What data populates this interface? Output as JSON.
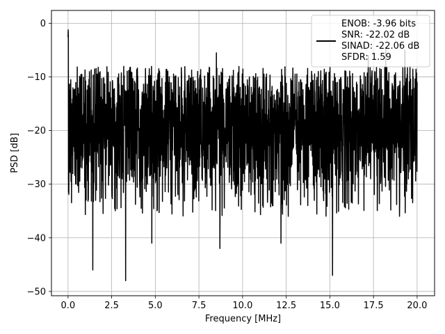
{
  "chart_data": {
    "type": "line",
    "xlabel": "Frequency [MHz]",
    "ylabel": "PSD [dB]",
    "xlim": [
      -0.95,
      21.0
    ],
    "ylim": [
      -50.8,
      2.4
    ],
    "xticks": [
      0.0,
      2.5,
      5.0,
      7.5,
      10.0,
      12.5,
      15.0,
      17.5,
      20.0
    ],
    "xtick_labels": [
      "0.0",
      "2.5",
      "5.0",
      "7.5",
      "10.0",
      "12.5",
      "15.0",
      "17.5",
      "20.0"
    ],
    "yticks": [
      0,
      -10,
      -20,
      -30,
      -40,
      -50
    ],
    "ytick_labels": [
      "0",
      "−10",
      "−20",
      "−30",
      "−40",
      "−50"
    ],
    "grid": true,
    "legend_position": "top-right",
    "legend": {
      "lines": [
        "ENOB: -3.96 bits",
        "SNR: -22.02 dB",
        "SINAD: -22.06 dB",
        "SFDR: 1.59"
      ],
      "color": "#000000"
    },
    "series": [
      {
        "color": "#000000",
        "description": "noisy spectrum sampled densely between 0 and 20 MHz",
        "x_range": [
          0.0,
          20.0
        ],
        "peak": {
          "x": 0.0,
          "y": 0.0
        },
        "typical_range": [
          -30,
          -8
        ],
        "notable_minima": [
          {
            "x": 1.42,
            "y": -46.0
          },
          {
            "x": 3.3,
            "y": -48.0
          },
          {
            "x": 15.15,
            "y": -47.0
          },
          {
            "x": 12.2,
            "y": -41.0
          },
          {
            "x": 8.7,
            "y": -42.0
          },
          {
            "x": 4.8,
            "y": -41.0
          }
        ],
        "notable_maxima": [
          {
            "x": 8.5,
            "y": -5.5
          },
          {
            "x": 17.2,
            "y": -6.0
          },
          {
            "x": 18.2,
            "y": -4.5
          },
          {
            "x": 19.3,
            "y": -5.0
          }
        ]
      }
    ]
  }
}
